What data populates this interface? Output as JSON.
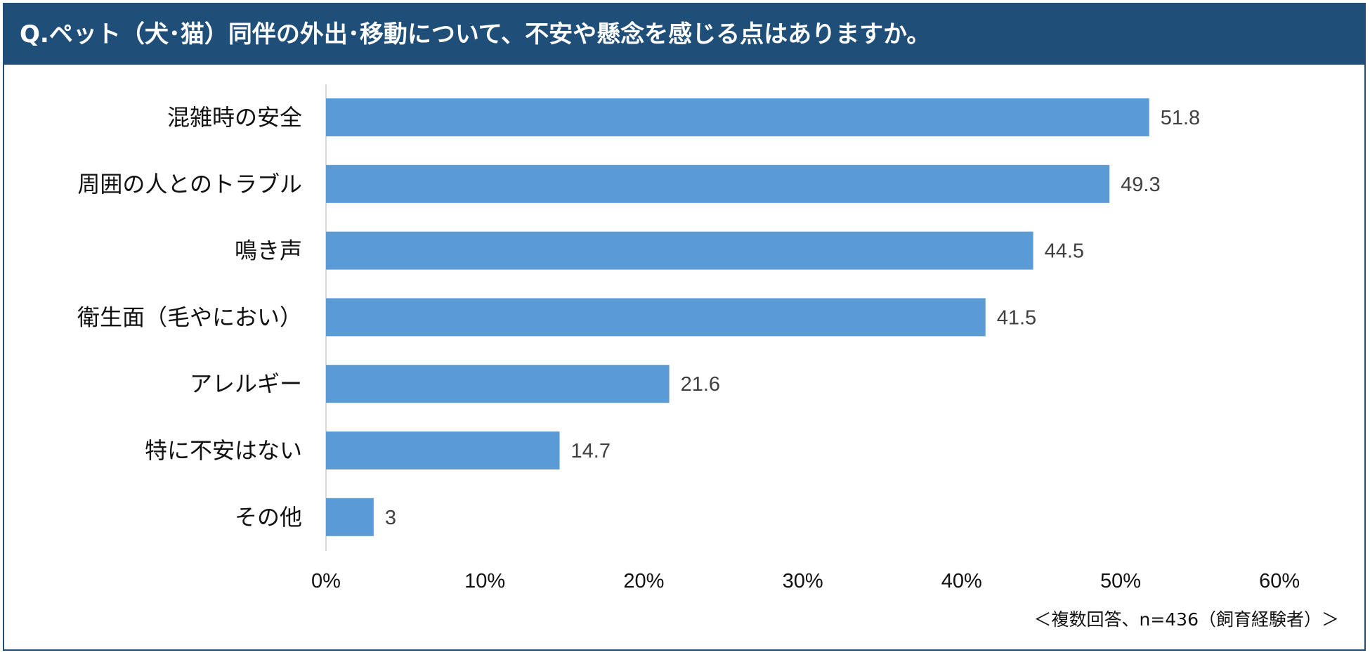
{
  "header": {
    "title": "Q.ペット（犬･猫）同伴の外出･移動について、不安や懸念を感じる点はありますか。"
  },
  "footnote": "＜複数回答、n=436（飼育経験者）＞",
  "colors": {
    "header_bg": "#1f4e79",
    "bar": "#5b9bd5",
    "axis": "#d9d9d9"
  },
  "chart_data": {
    "type": "bar",
    "orientation": "horizontal",
    "title": "Q.ペット（犬･猫）同伴の外出･移動について、不安や懸念を感じる点はありますか。",
    "categories": [
      "混雑時の安全",
      "周囲の人とのトラブル",
      "鳴き声",
      "衛生面（毛やにおい）",
      "アレルギー",
      "特に不安はない",
      "その他"
    ],
    "values": [
      51.8,
      49.3,
      44.5,
      41.5,
      21.6,
      14.7,
      3
    ],
    "value_labels": [
      "51.8",
      "49.3",
      "44.5",
      "41.5",
      "21.6",
      "14.7",
      "3"
    ],
    "xlim": [
      0,
      60
    ],
    "xticks": [
      "0%",
      "10%",
      "20%",
      "30%",
      "40%",
      "50%",
      "60%"
    ],
    "grid": false,
    "legend": "none"
  }
}
